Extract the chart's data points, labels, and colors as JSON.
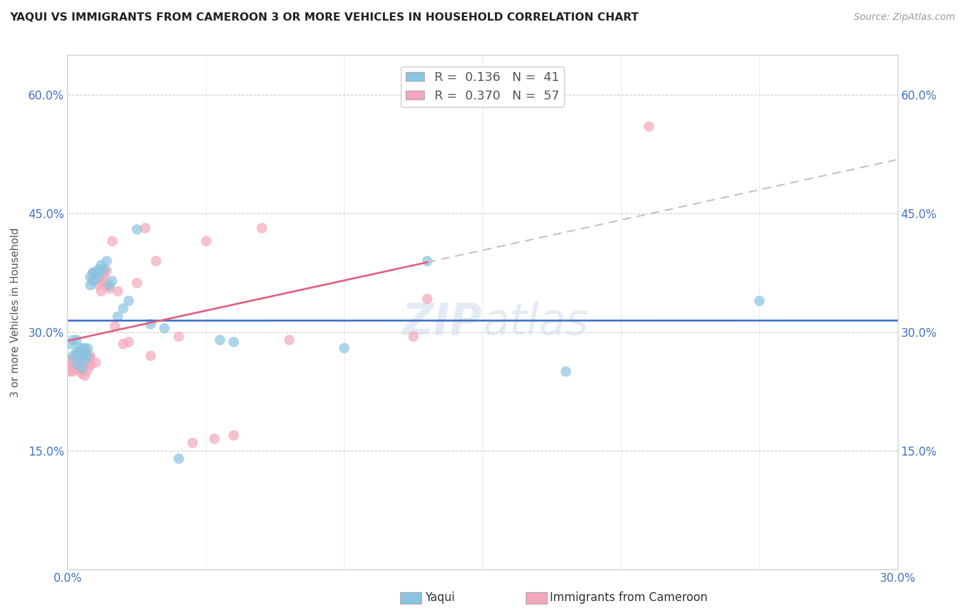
{
  "title": "YAQUI VS IMMIGRANTS FROM CAMEROON 3 OR MORE VEHICLES IN HOUSEHOLD CORRELATION CHART",
  "source": "Source: ZipAtlas.com",
  "ylabel": "3 or more Vehicles in Household",
  "xlim": [
    0.0,
    0.3
  ],
  "ylim": [
    0.0,
    0.65
  ],
  "xticks": [
    0.0,
    0.05,
    0.1,
    0.15,
    0.2,
    0.25,
    0.3
  ],
  "yticks": [
    0.0,
    0.15,
    0.3,
    0.45,
    0.6
  ],
  "yaqui_color": "#89c4e1",
  "cameroon_color": "#f4a7b9",
  "yaqui_line_color": "#4472c4",
  "cameroon_line_color": "#e06080",
  "diag_line_color": "#ccbbbb",
  "watermark": "ZIPatlas",
  "yaqui_scatter_x": [
    0.001,
    0.002,
    0.002,
    0.003,
    0.003,
    0.003,
    0.004,
    0.004,
    0.005,
    0.005,
    0.005,
    0.006,
    0.006,
    0.006,
    0.007,
    0.007,
    0.008,
    0.008,
    0.009,
    0.009,
    0.01,
    0.011,
    0.011,
    0.012,
    0.013,
    0.014,
    0.015,
    0.016,
    0.018,
    0.02,
    0.022,
    0.025,
    0.03,
    0.035,
    0.04,
    0.055,
    0.06,
    0.1,
    0.13,
    0.18,
    0.25
  ],
  "yaqui_scatter_y": [
    0.285,
    0.27,
    0.29,
    0.26,
    0.275,
    0.29,
    0.268,
    0.28,
    0.255,
    0.275,
    0.28,
    0.265,
    0.275,
    0.28,
    0.27,
    0.28,
    0.36,
    0.37,
    0.365,
    0.375,
    0.375,
    0.38,
    0.37,
    0.385,
    0.38,
    0.39,
    0.36,
    0.365,
    0.32,
    0.33,
    0.34,
    0.43,
    0.31,
    0.305,
    0.14,
    0.29,
    0.288,
    0.28,
    0.39,
    0.25,
    0.34
  ],
  "cameroon_scatter_x": [
    0.001,
    0.001,
    0.001,
    0.002,
    0.002,
    0.002,
    0.003,
    0.003,
    0.003,
    0.004,
    0.004,
    0.004,
    0.005,
    0.005,
    0.005,
    0.005,
    0.006,
    0.006,
    0.006,
    0.007,
    0.007,
    0.008,
    0.008,
    0.008,
    0.009,
    0.009,
    0.01,
    0.01,
    0.011,
    0.011,
    0.012,
    0.012,
    0.012,
    0.013,
    0.013,
    0.014,
    0.014,
    0.015,
    0.016,
    0.017,
    0.018,
    0.02,
    0.022,
    0.025,
    0.028,
    0.03,
    0.032,
    0.04,
    0.045,
    0.05,
    0.053,
    0.06,
    0.07,
    0.08,
    0.125,
    0.13,
    0.21
  ],
  "cameroon_scatter_y": [
    0.25,
    0.255,
    0.265,
    0.25,
    0.26,
    0.265,
    0.255,
    0.258,
    0.27,
    0.252,
    0.262,
    0.275,
    0.248,
    0.255,
    0.258,
    0.268,
    0.245,
    0.258,
    0.268,
    0.252,
    0.262,
    0.27,
    0.258,
    0.268,
    0.365,
    0.375,
    0.262,
    0.37,
    0.368,
    0.36,
    0.352,
    0.365,
    0.372,
    0.37,
    0.378,
    0.358,
    0.378,
    0.355,
    0.415,
    0.308,
    0.352,
    0.285,
    0.288,
    0.362,
    0.432,
    0.27,
    0.39,
    0.295,
    0.16,
    0.415,
    0.165,
    0.17,
    0.432,
    0.29,
    0.295,
    0.342,
    0.56
  ]
}
